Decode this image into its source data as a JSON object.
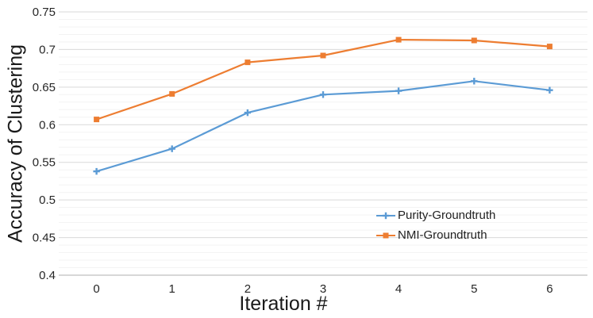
{
  "chart_data": {
    "type": "line",
    "title": "",
    "xlabel": "Iteration #",
    "ylabel": "Accuracy of Clustering",
    "x": [
      0,
      1,
      2,
      3,
      4,
      5,
      6
    ],
    "x_tick_labels": [
      "0",
      "1",
      "2",
      "3",
      "4",
      "5",
      "6"
    ],
    "series": [
      {
        "name": "Purity-Groundtruth",
        "color": "#5B9BD5",
        "marker": "plus",
        "values": [
          0.538,
          0.568,
          0.616,
          0.64,
          0.645,
          0.658,
          0.646
        ]
      },
      {
        "name": "NMI-Groundtruth",
        "color": "#ED7D31",
        "marker": "square",
        "values": [
          0.607,
          0.641,
          0.683,
          0.692,
          0.713,
          0.712,
          0.704
        ]
      }
    ],
    "ylim": [
      0.4,
      0.75
    ],
    "y_major_step": 0.05,
    "y_minor_step": 0.01,
    "y_tick_labels": [
      "0.4",
      "0.45",
      "0.5",
      "0.55",
      "0.6",
      "0.65",
      "0.7",
      "0.75"
    ],
    "grid": {
      "major": true,
      "minor": true,
      "orientation": "horizontal"
    },
    "legend_position": "inside-lower-right",
    "colors": {
      "major_grid": "#D9D9D9",
      "minor_grid": "#F3F3F3",
      "axis_line": "#BFBFBF",
      "text": "#262626"
    }
  }
}
